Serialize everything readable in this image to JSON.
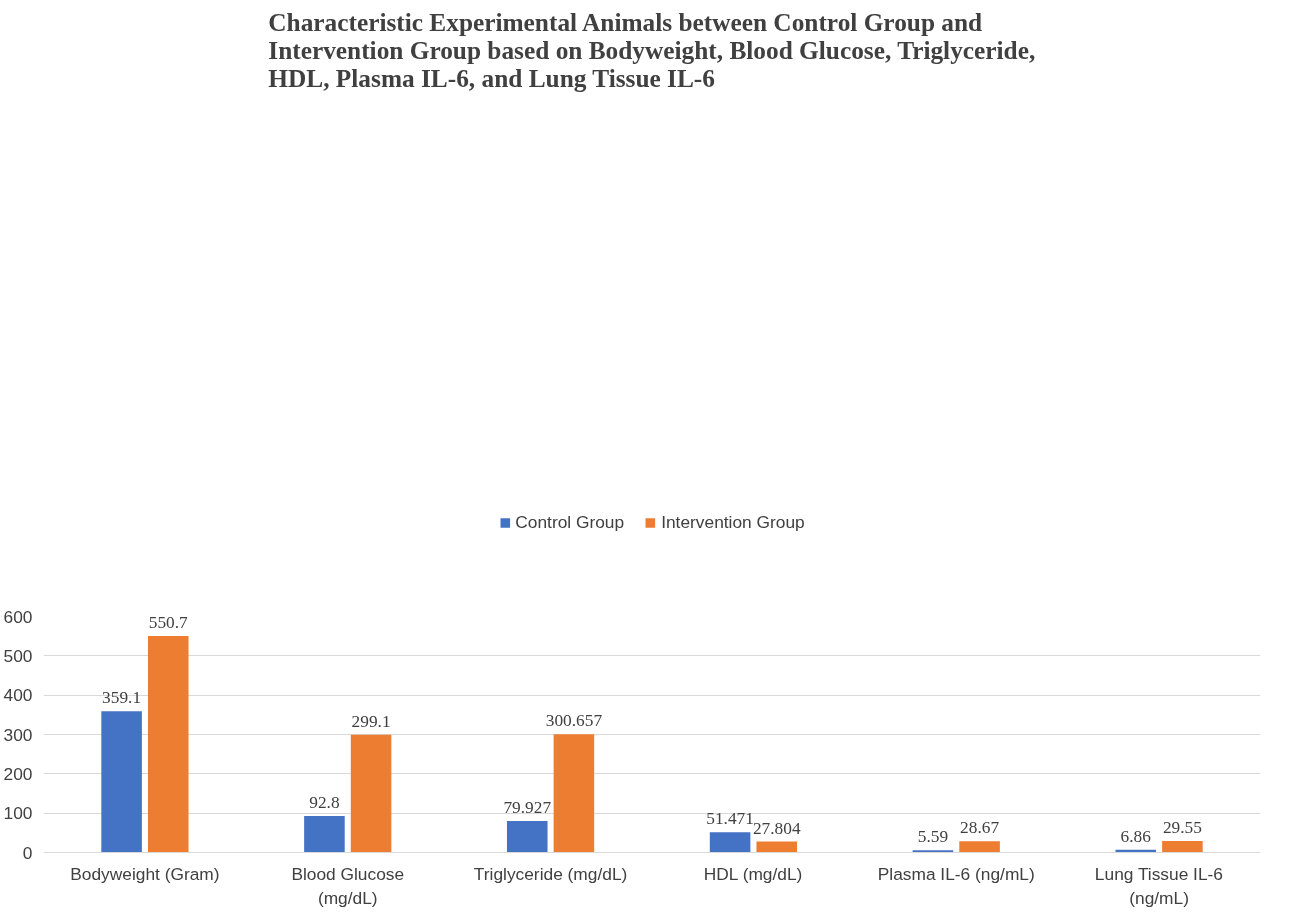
{
  "chart_data": {
    "type": "bar",
    "title": "Characteristic Experimental Animals between Control Group and Intervention Group based on Bodyweight, Blood Glucose, Triglyceride, HDL, Plasma IL-6, and Lung Tissue IL-6",
    "categories": [
      "Bodyweight (Gram)",
      "Blood Glucose (mg/dL)",
      "Triglyceride (mg/dL)",
      "HDL (mg/dL)",
      "Plasma IL-6 (ng/mL)",
      "Lung Tissue IL-6 (ng/mL)"
    ],
    "series": [
      {
        "name": "Control Group",
        "color": "#4472c4",
        "values": [
          359.1,
          92.8,
          79.927,
          51.471,
          5.59,
          6.86
        ]
      },
      {
        "name": "Intervention Group",
        "color": "#ed7d31",
        "values": [
          550.7,
          299.1,
          300.657,
          27.804,
          28.67,
          29.55
        ]
      }
    ],
    "ylim": [
      0,
      600
    ],
    "yticks": [
      0,
      100,
      200,
      300,
      400,
      500,
      600
    ],
    "grid": "y",
    "legend": "top",
    "data_labels": true
  }
}
